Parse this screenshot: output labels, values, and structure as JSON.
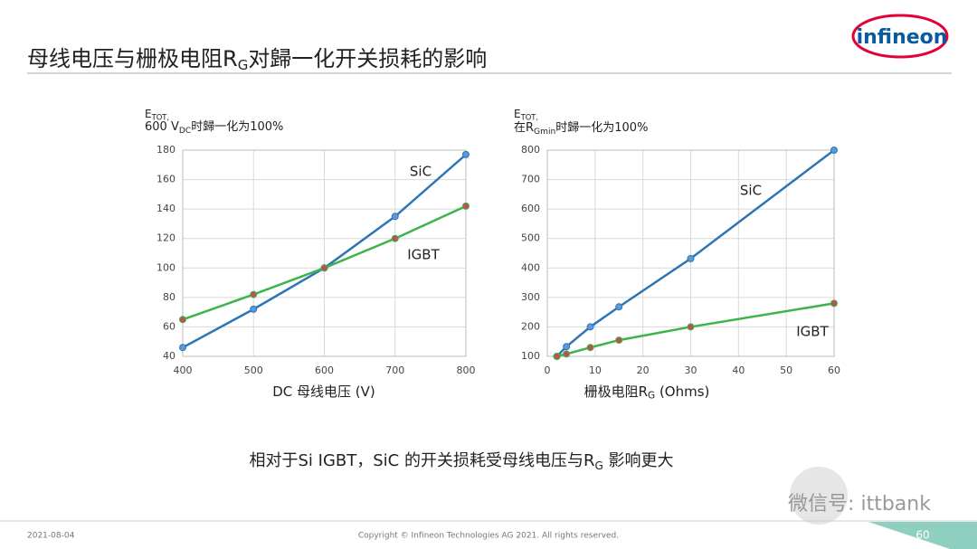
{
  "slide": {
    "title": [
      "母线电压与栅极电阻R",
      "G",
      "对歸一化开关损耗的影响"
    ],
    "logo": "infineon",
    "conclusion": [
      "相对于Si IGBT，SiC 的开关损耗受母线电压与R",
      "G",
      " 影响更大"
    ],
    "watermark": "微信号: ittbank",
    "date": "2021-08-04",
    "copyright": "Copyright © Infineon Technologies AG 2021. All rights reserved.",
    "page": "60"
  },
  "chart_data": [
    {
      "type": "line",
      "ylabel": [
        [
          "E",
          "TOT,"
        ],
        [
          "600 V",
          "DC",
          "时歸一化为100%"
        ]
      ],
      "xlabel": [
        "DC 母线电压 (V)"
      ],
      "x": [
        400,
        500,
        600,
        700,
        800
      ],
      "xlim": [
        400,
        800
      ],
      "xticks": [
        400,
        500,
        600,
        700,
        800
      ],
      "ylim": [
        40,
        180
      ],
      "yticks": [
        40,
        60,
        80,
        100,
        120,
        140,
        160,
        180
      ],
      "grid": true,
      "series": [
        {
          "name": "SiC",
          "color": "#2e75b6",
          "marker_color": "#5b9bd5",
          "values": [
            46,
            72,
            100,
            135,
            177
          ]
        },
        {
          "name": "IGBT",
          "color": "#3cb44b",
          "marker_color": "#c0504d",
          "values": [
            65,
            82,
            100,
            120,
            142
          ]
        }
      ]
    },
    {
      "type": "line",
      "ylabel": [
        [
          "E",
          "TOT,"
        ],
        [
          "在R",
          "Gmin",
          "时歸一化为100%"
        ]
      ],
      "xlabel": [
        "栅极电阻R",
        "G",
        " (Ohms)"
      ],
      "x": [
        2,
        4,
        9,
        15,
        30,
        60
      ],
      "xlim": [
        0,
        60
      ],
      "xticks": [
        0,
        10,
        20,
        30,
        40,
        50,
        60
      ],
      "ylim": [
        100,
        800
      ],
      "yticks": [
        100,
        200,
        300,
        400,
        500,
        600,
        700,
        800
      ],
      "grid": true,
      "series": [
        {
          "name": "SiC",
          "color": "#2e75b6",
          "marker_color": "#5b9bd5",
          "values": [
            100,
            133,
            200,
            268,
            432,
            800
          ]
        },
        {
          "name": "IGBT",
          "color": "#3cb44b",
          "marker_color": "#c0504d",
          "values": [
            100,
            108,
            130,
            155,
            200,
            280
          ]
        }
      ]
    }
  ]
}
